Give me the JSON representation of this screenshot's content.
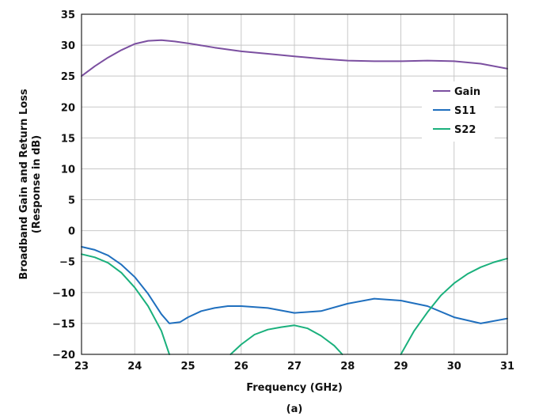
{
  "caption": "(a)",
  "colors": {
    "gain": "#7b4fa0",
    "s11": "#1f6fbe",
    "s22": "#1ab07c"
  },
  "chart_data": {
    "type": "line",
    "xlabel": "Frequency (GHz)",
    "ylabel_line1": "Broadband Gain and Return Loss",
    "ylabel_line2": "(Response in dB)",
    "xlim": [
      23,
      31
    ],
    "ylim": [
      -20,
      35
    ],
    "x_ticks": [
      23,
      24,
      25,
      26,
      27,
      28,
      29,
      30,
      31
    ],
    "y_ticks": [
      35,
      30,
      25,
      20,
      15,
      10,
      5,
      0,
      -5,
      -10,
      -15,
      -20
    ],
    "y_tick_labels": [
      "35",
      "30",
      "25",
      "20",
      "15",
      "10",
      "5",
      "0",
      "−5",
      "−10",
      "−15",
      "−20"
    ],
    "grid": true,
    "legend_position": "top-right",
    "series": [
      {
        "name": "Gain",
        "color": "#7b4fa0",
        "points": [
          [
            23,
            25.0
          ],
          [
            23.25,
            26.6
          ],
          [
            23.5,
            28.0
          ],
          [
            23.75,
            29.2
          ],
          [
            24.0,
            30.2
          ],
          [
            24.25,
            30.7
          ],
          [
            24.5,
            30.8
          ],
          [
            24.75,
            30.6
          ],
          [
            25.0,
            30.3
          ],
          [
            25.5,
            29.6
          ],
          [
            26.0,
            29.0
          ],
          [
            26.5,
            28.6
          ],
          [
            27.0,
            28.2
          ],
          [
            27.5,
            27.8
          ],
          [
            28.0,
            27.5
          ],
          [
            28.5,
            27.4
          ],
          [
            29.0,
            27.4
          ],
          [
            29.5,
            27.5
          ],
          [
            30.0,
            27.4
          ],
          [
            30.5,
            27.0
          ],
          [
            31.0,
            26.2
          ]
        ]
      },
      {
        "name": "S11",
        "color": "#1f6fbe",
        "points": [
          [
            23,
            -2.6
          ],
          [
            23.25,
            -3.1
          ],
          [
            23.5,
            -4.0
          ],
          [
            23.75,
            -5.5
          ],
          [
            24.0,
            -7.5
          ],
          [
            24.25,
            -10.2
          ],
          [
            24.5,
            -13.5
          ],
          [
            24.65,
            -15.0
          ],
          [
            24.85,
            -14.8
          ],
          [
            25.0,
            -14.0
          ],
          [
            25.25,
            -13.0
          ],
          [
            25.5,
            -12.5
          ],
          [
            25.75,
            -12.2
          ],
          [
            26.0,
            -12.2
          ],
          [
            26.5,
            -12.5
          ],
          [
            27.0,
            -13.3
          ],
          [
            27.5,
            -13.0
          ],
          [
            28.0,
            -11.8
          ],
          [
            28.5,
            -11.0
          ],
          [
            29.0,
            -11.3
          ],
          [
            29.5,
            -12.2
          ],
          [
            30.0,
            -14.0
          ],
          [
            30.5,
            -15.0
          ],
          [
            31.0,
            -14.2
          ]
        ]
      },
      {
        "name": "S22",
        "color": "#1ab07c",
        "segments": [
          [
            [
              23,
              -3.8
            ],
            [
              23.25,
              -4.3
            ],
            [
              23.5,
              -5.2
            ],
            [
              23.75,
              -6.8
            ],
            [
              24.0,
              -9.2
            ],
            [
              24.25,
              -12.2
            ],
            [
              24.5,
              -16.2
            ],
            [
              24.65,
              -20.0
            ]
          ],
          [
            [
              25.8,
              -20.0
            ],
            [
              26.0,
              -18.4
            ],
            [
              26.25,
              -16.8
            ],
            [
              26.5,
              -16.0
            ],
            [
              26.75,
              -15.6
            ],
            [
              27.0,
              -15.3
            ],
            [
              27.25,
              -15.8
            ],
            [
              27.5,
              -17.0
            ],
            [
              27.75,
              -18.6
            ],
            [
              27.9,
              -20.0
            ]
          ],
          [
            [
              29.0,
              -20.0
            ],
            [
              29.25,
              -16.2
            ],
            [
              29.5,
              -13.2
            ],
            [
              29.75,
              -10.5
            ],
            [
              30.0,
              -8.5
            ],
            [
              30.25,
              -7.0
            ],
            [
              30.5,
              -5.9
            ],
            [
              30.75,
              -5.1
            ],
            [
              31.0,
              -4.5
            ]
          ]
        ]
      }
    ]
  }
}
